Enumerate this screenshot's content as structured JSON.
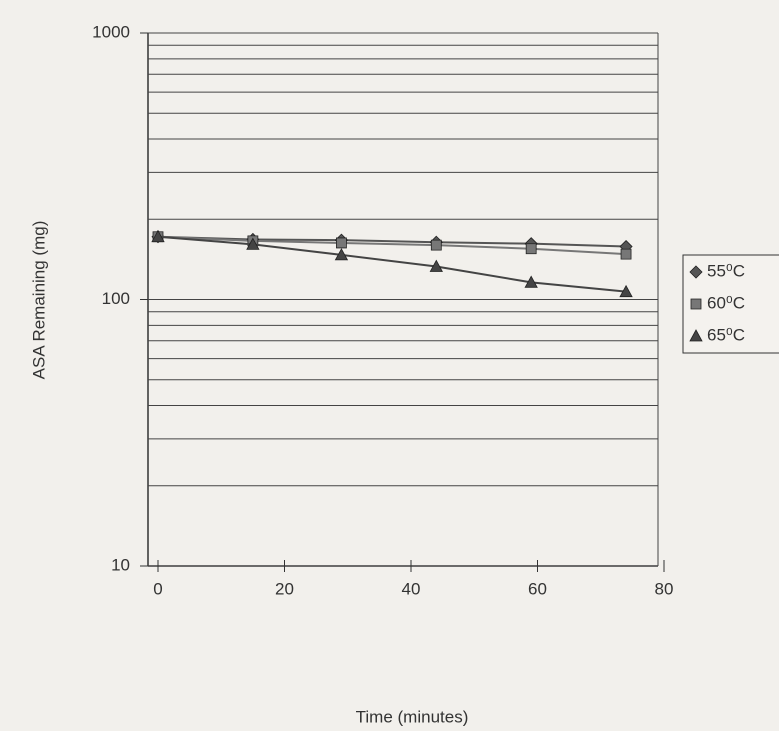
{
  "chart_data": {
    "type": "scatter",
    "x_label": "Time (minutes)",
    "y_label": "ASA Remaining (mg)",
    "xlim": [
      0,
      80
    ],
    "xticks": [
      0,
      20,
      40,
      60,
      80
    ],
    "ylim": [
      10,
      1000
    ],
    "yticks": [
      10,
      100,
      1000
    ],
    "log_y": true,
    "grid": true,
    "legend": "right",
    "x": [
      0,
      15,
      29,
      44,
      59,
      74
    ],
    "series": [
      {
        "name": "55⁰C",
        "color": "#555555",
        "marker": "diamond",
        "values": [
          172,
          168,
          167,
          164,
          162,
          158
        ]
      },
      {
        "name": "60⁰C",
        "color": "#777777",
        "marker": "square",
        "values": [
          172,
          166,
          163,
          160,
          155,
          148
        ]
      },
      {
        "name": "65⁰C",
        "color": "#444444",
        "marker": "triangle",
        "values": [
          172,
          161,
          147,
          133,
          116,
          107
        ]
      }
    ]
  }
}
